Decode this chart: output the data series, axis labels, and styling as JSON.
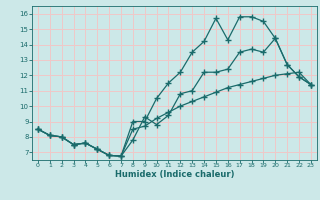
{
  "xlabel": "Humidex (Indice chaleur)",
  "bg_color": "#cce8e8",
  "grid_color": "#f0c8c8",
  "line_color": "#1a6b6b",
  "xlim": [
    -0.5,
    23.5
  ],
  "ylim": [
    6.5,
    16.5
  ],
  "xticks": [
    0,
    1,
    2,
    3,
    4,
    5,
    6,
    7,
    8,
    9,
    10,
    11,
    12,
    13,
    14,
    15,
    16,
    17,
    18,
    19,
    20,
    21,
    22,
    23
  ],
  "yticks": [
    7,
    8,
    9,
    10,
    11,
    12,
    13,
    14,
    15,
    16
  ],
  "line1_x": [
    0,
    1,
    2,
    3,
    4,
    5,
    6,
    7,
    8,
    9,
    10,
    11,
    12,
    13,
    14,
    15,
    16,
    17,
    18,
    19,
    20,
    21,
    22,
    23
  ],
  "line1_y": [
    8.5,
    8.1,
    8.0,
    7.5,
    7.6,
    7.2,
    6.8,
    6.75,
    7.8,
    9.3,
    8.8,
    9.4,
    10.8,
    11.0,
    12.2,
    12.2,
    12.4,
    13.5,
    13.7,
    13.5,
    14.4,
    12.7,
    11.9,
    11.4
  ],
  "line2_x": [
    0,
    1,
    2,
    3,
    4,
    5,
    6,
    7,
    8,
    9,
    10,
    11,
    12,
    13,
    14,
    15,
    16,
    17,
    18,
    19,
    20,
    21,
    22,
    23
  ],
  "line2_y": [
    8.5,
    8.1,
    8.0,
    7.5,
    7.6,
    7.2,
    6.8,
    6.75,
    9.0,
    9.0,
    10.5,
    11.5,
    12.2,
    13.5,
    14.2,
    15.7,
    14.3,
    15.8,
    15.8,
    15.5,
    14.4,
    12.7,
    11.9,
    11.4
  ],
  "line3_x": [
    0,
    1,
    2,
    3,
    4,
    5,
    6,
    7,
    8,
    9,
    10,
    11,
    12,
    13,
    14,
    15,
    16,
    17,
    18,
    19,
    20,
    21,
    22,
    23
  ],
  "line3_y": [
    8.5,
    8.1,
    8.0,
    7.5,
    7.6,
    7.2,
    6.8,
    6.75,
    8.5,
    8.7,
    9.2,
    9.6,
    10.0,
    10.3,
    10.6,
    10.9,
    11.2,
    11.4,
    11.6,
    11.8,
    12.0,
    12.1,
    12.2,
    11.4
  ]
}
